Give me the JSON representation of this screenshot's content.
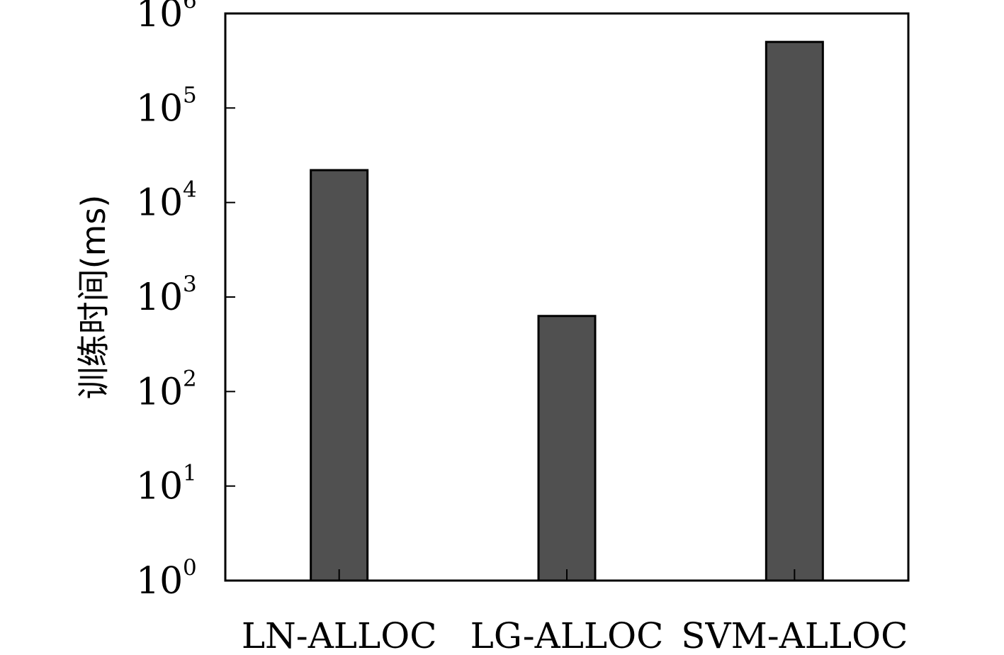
{
  "chart_data": {
    "type": "bar",
    "ylabel": "训练时间(ms)",
    "yscale": "log",
    "ylim": [
      1,
      1000000
    ],
    "ytick_base": "10",
    "ytick_exponents": [
      "0",
      "1",
      "2",
      "3",
      "4",
      "5",
      "6"
    ],
    "categories": [
      "LN-ALLOC",
      "LG-ALLOC",
      "SVM-ALLOC"
    ],
    "values": [
      22000,
      630,
      500000
    ],
    "grid": false,
    "legend": "none",
    "colors": {
      "bar": "#505050",
      "edge": "#000000",
      "axis": "#000000"
    }
  }
}
